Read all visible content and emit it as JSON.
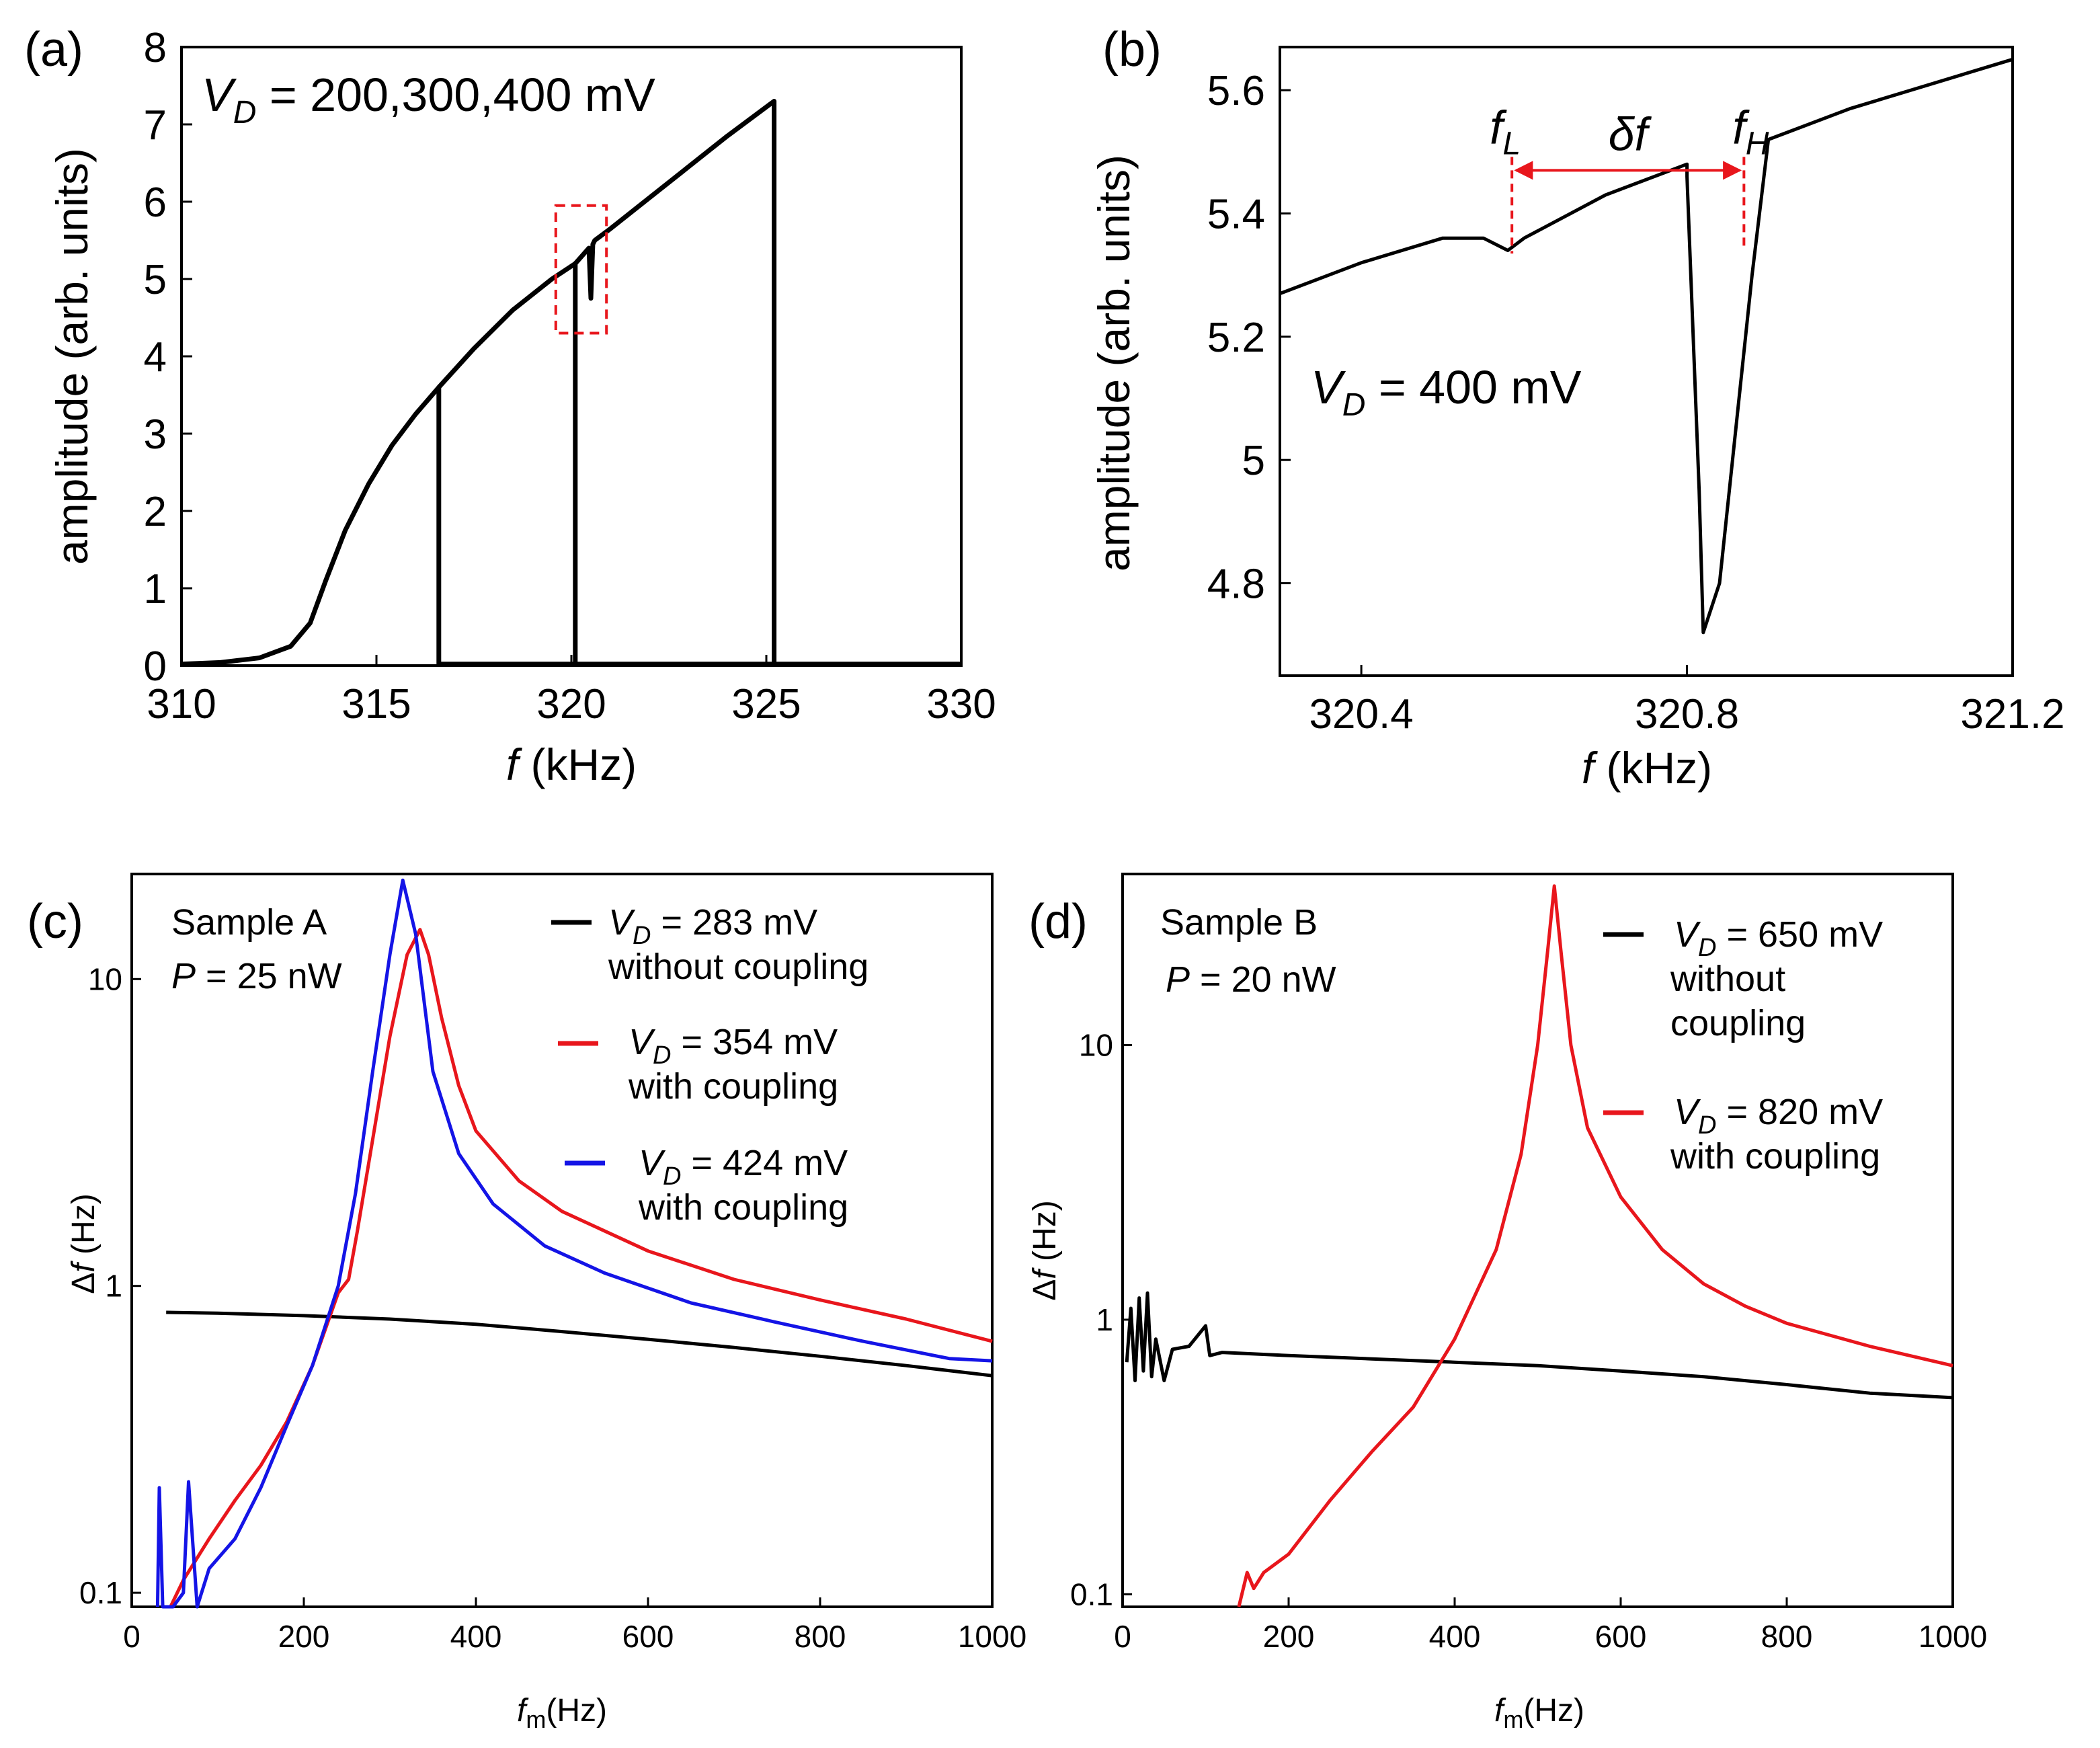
{
  "colors": {
    "black": "#000000",
    "red": "#e8161c",
    "blue": "#1414e6",
    "annotation_red": "#e8161c"
  },
  "chart_data": [
    {
      "id": "a",
      "type": "line",
      "panel_label": "(a)",
      "title": "",
      "annotation": {
        "prefix": "V",
        "subscript": "D",
        "rest": " = 200,300,400 mV"
      },
      "xlabel": {
        "italic": "f",
        "rest": " (kHz)"
      },
      "ylabel": "amplitude (arb. units)",
      "xlim": [
        310,
        330
      ],
      "ylim": [
        0,
        8
      ],
      "xticks": [
        310,
        315,
        320,
        325,
        330
      ],
      "yticks": [
        0,
        1,
        2,
        3,
        4,
        5,
        6,
        7,
        8
      ],
      "series": [
        {
          "name": "V_D = 200 mV",
          "color": "#000000",
          "jump_down_at": 316.6,
          "x": [
            310,
            311,
            312,
            312.8,
            313.3,
            313.7,
            314.2,
            314.8,
            315.4,
            316,
            316.6,
            316.6,
            318,
            320,
            325,
            330
          ],
          "y": [
            0.02,
            0.04,
            0.1,
            0.25,
            0.55,
            1.1,
            1.75,
            2.35,
            2.85,
            3.25,
            3.6,
            0.02,
            0.02,
            0.02,
            0.02,
            0.02
          ]
        },
        {
          "name": "V_D = 300 mV",
          "color": "#000000",
          "jump_down_at": 320.1,
          "x": [
            316.6,
            317.5,
            318.5,
            319.5,
            320.1,
            320.1
          ],
          "y": [
            3.6,
            4.1,
            4.6,
            5.0,
            5.2,
            0.02
          ]
        },
        {
          "name": "V_D = 400 mV",
          "color": "#000000",
          "jump_down_at": 325.2,
          "x": [
            320.1,
            320.45,
            320.5,
            320.55,
            320.6,
            321,
            322,
            323,
            324,
            325.2,
            325.2
          ],
          "y": [
            5.2,
            5.4,
            4.75,
            5.45,
            5.5,
            5.65,
            6.05,
            6.45,
            6.85,
            7.3,
            0.02
          ]
        }
      ],
      "highlight_box": {
        "x_range": [
          319.6,
          320.9
        ],
        "y_range": [
          4.3,
          5.95
        ]
      }
    },
    {
      "id": "b",
      "type": "line",
      "panel_label": "(b)",
      "annotation": {
        "prefix": "V",
        "subscript": "D",
        "rest": " = 400 mV"
      },
      "xlabel": {
        "italic": "f",
        "rest": " (kHz)"
      },
      "ylabel": "amplitude (arb. units)",
      "xlim": [
        320.3,
        321.2
      ],
      "ylim": [
        4.65,
        5.67
      ],
      "xticks": [
        320.4,
        320.8,
        321.2
      ],
      "xtick_labels": [
        "320.4",
        "320.8",
        "321.2"
      ],
      "yticks": [
        4.8,
        5,
        5.2,
        5.4,
        5.6
      ],
      "ytick_labels": [
        "4.8",
        "5",
        "5.2",
        "5.4",
        "5.6"
      ],
      "series": [
        {
          "name": "V_D = 400 mV",
          "color": "#000000",
          "x": [
            320.3,
            320.4,
            320.5,
            320.55,
            320.58,
            320.6,
            320.7,
            320.8,
            320.8,
            320.815,
            320.82,
            320.84,
            320.86,
            320.88,
            320.9,
            321.0,
            321.2
          ],
          "y": [
            5.27,
            5.32,
            5.36,
            5.36,
            5.34,
            5.36,
            5.43,
            5.48,
            5.46,
            4.95,
            4.72,
            4.8,
            5.05,
            5.3,
            5.52,
            5.57,
            5.65
          ]
        }
      ],
      "markers": {
        "fL": {
          "x": 320.585,
          "label_italic": "f",
          "label_sub": "L"
        },
        "fH": {
          "x": 320.87,
          "label_italic": "f",
          "label_sub": "H"
        },
        "delta_label": "δf",
        "arrow_y": 5.47
      }
    },
    {
      "id": "c",
      "type": "line",
      "yscale": "log",
      "panel_label": "(c)",
      "sample_text": "Sample A",
      "power": {
        "italic": "P",
        "rest": " = 25 nW"
      },
      "xlabel": {
        "italic": "f",
        "sub": "m",
        "rest": "(Hz)"
      },
      "ylabel": {
        "prefix": "Δ",
        "italic": "f",
        "rest": " (Hz)"
      },
      "xlim": [
        0,
        1000
      ],
      "ylim": [
        0.09,
        22
      ],
      "xticks": [
        0,
        200,
        400,
        600,
        800,
        1000
      ],
      "yticks": [
        0.1,
        1,
        10
      ],
      "ytick_labels": [
        "0.1",
        "1",
        "10"
      ],
      "series": [
        {
          "name": "V_D = 283 mV",
          "legend_prefix": "V",
          "legend_sub": "D",
          "legend_rest": " = 283 mV",
          "legend_line2": "without coupling",
          "color": "#000000",
          "x": [
            40,
            100,
            200,
            300,
            400,
            500,
            600,
            700,
            800,
            900,
            1000
          ],
          "y": [
            0.82,
            0.815,
            0.8,
            0.78,
            0.75,
            0.71,
            0.67,
            0.63,
            0.59,
            0.55,
            0.51
          ]
        },
        {
          "name": "V_D = 354 mV",
          "legend_prefix": "V",
          "legend_sub": "D",
          "legend_rest": " = 354 mV",
          "legend_line2": "with coupling",
          "color": "#e8161c",
          "x": [
            45,
            60,
            90,
            120,
            150,
            180,
            210,
            240,
            252,
            262,
            280,
            300,
            320,
            335,
            345,
            360,
            380,
            400,
            450,
            500,
            600,
            700,
            800,
            900,
            1000
          ],
          "y": [
            0.09,
            0.11,
            0.15,
            0.2,
            0.26,
            0.36,
            0.55,
            0.95,
            1.05,
            1.5,
            3.0,
            6.5,
            12.0,
            14.5,
            12.0,
            7.5,
            4.5,
            3.2,
            2.2,
            1.75,
            1.3,
            1.05,
            0.9,
            0.78,
            0.66
          ]
        },
        {
          "name": "V_D = 424 mV",
          "legend_prefix": "V",
          "legend_sub": "D",
          "legend_rest": " = 424 mV",
          "legend_line2": "with coupling",
          "color": "#1414e6",
          "x": [
            30,
            32,
            36,
            48,
            60,
            66,
            76,
            90,
            120,
            150,
            180,
            210,
            240,
            260,
            280,
            300,
            315,
            330,
            350,
            380,
            420,
            480,
            550,
            650,
            750,
            850,
            950,
            1000
          ],
          "y": [
            0.09,
            0.22,
            0.09,
            0.09,
            0.1,
            0.23,
            0.09,
            0.12,
            0.15,
            0.22,
            0.35,
            0.55,
            1.0,
            2.0,
            5.0,
            12.0,
            21.0,
            14.0,
            5.0,
            2.7,
            1.85,
            1.35,
            1.1,
            0.88,
            0.76,
            0.66,
            0.58,
            0.57
          ]
        }
      ]
    },
    {
      "id": "d",
      "type": "line",
      "yscale": "log",
      "panel_label": "(d)",
      "sample_text": "Sample B",
      "power": {
        "italic": "P",
        "rest": " = 20 nW"
      },
      "xlabel": {
        "italic": "f",
        "sub": "m",
        "rest": "(Hz)"
      },
      "ylabel": {
        "prefix": "Δ",
        "italic": "f",
        "rest": " (Hz)"
      },
      "xlim": [
        0,
        1000
      ],
      "ylim": [
        0.09,
        42
      ],
      "xticks": [
        0,
        200,
        400,
        600,
        800,
        1000
      ],
      "yticks": [
        0.1,
        1,
        10
      ],
      "ytick_labels": [
        "0.1",
        "1",
        "10"
      ],
      "series": [
        {
          "name": "V_D = 650 mV",
          "legend_prefix": "V",
          "legend_sub": "D",
          "legend_rest": " = 650 mV",
          "legend_line2": "without coupling",
          "legend_line2a": "without",
          "legend_line2b": "coupling",
          "color": "#000000",
          "x": [
            5,
            10,
            15,
            20,
            25,
            30,
            35,
            40,
            50,
            60,
            80,
            100,
            105,
            120,
            200,
            300,
            400,
            500,
            600,
            700,
            800,
            900,
            1000
          ],
          "y": [
            0.7,
            1.1,
            0.6,
            1.2,
            0.65,
            1.25,
            0.62,
            0.85,
            0.6,
            0.78,
            0.8,
            0.95,
            0.74,
            0.76,
            0.74,
            0.72,
            0.7,
            0.68,
            0.65,
            0.62,
            0.58,
            0.54,
            0.52
          ]
        },
        {
          "name": "V_D = 820 mV",
          "legend_prefix": "V",
          "legend_sub": "D",
          "legend_rest": " = 820 mV",
          "legend_line2": "with coupling",
          "color": "#e8161c",
          "x": [
            140,
            150,
            158,
            170,
            200,
            250,
            300,
            350,
            400,
            450,
            480,
            500,
            512,
            520,
            528,
            540,
            560,
            600,
            650,
            700,
            750,
            800,
            900,
            1000
          ],
          "y": [
            0.09,
            0.12,
            0.105,
            0.12,
            0.14,
            0.22,
            0.33,
            0.48,
            0.85,
            1.8,
            4.0,
            10.0,
            22.0,
            38.0,
            22.0,
            10.0,
            5.0,
            2.8,
            1.8,
            1.35,
            1.12,
            0.97,
            0.8,
            0.68
          ]
        }
      ]
    }
  ]
}
